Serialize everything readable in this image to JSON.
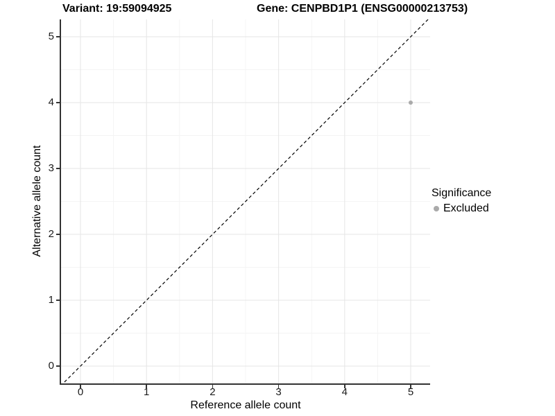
{
  "figure": {
    "background": "#ffffff"
  },
  "chart_data": {
    "type": "scatter",
    "titles": {
      "variant": "Variant: 19:59094925",
      "gene": "Gene: CENPBD1P1 (ENSG00000213753)"
    },
    "xlabel": "Reference allele count",
    "ylabel": "Alternative allele count",
    "xlim": [
      -0.3,
      5.3
    ],
    "ylim": [
      -0.27,
      5.26
    ],
    "xticks": [
      0,
      1,
      2,
      3,
      4,
      5
    ],
    "yticks": [
      0,
      1,
      2,
      3,
      4,
      5
    ],
    "xticks_minor": [
      0.5,
      1.5,
      2.5,
      3.5,
      4.5
    ],
    "yticks_minor": [
      0.5,
      1.5,
      2.5,
      3.5,
      4.5
    ],
    "grid": "major+minor",
    "identity_line": {
      "slope": 1,
      "intercept": 0,
      "style": "dashed",
      "color": "#000000"
    },
    "series": [
      {
        "name": "Excluded",
        "color": "#aaaaaa",
        "points": [
          {
            "x": 5,
            "y": 4
          }
        ]
      }
    ],
    "legend": {
      "title": "Significance",
      "position": "right",
      "entries": [
        {
          "label": "Excluded",
          "color": "#aaaaaa"
        }
      ]
    },
    "colors": {
      "grid_major": "#e5e5e5",
      "grid_minor": "#f4f4f4",
      "axis_line": "#333333",
      "tick": "#333333",
      "text": "#000000",
      "point": "#aaaaaa"
    }
  }
}
